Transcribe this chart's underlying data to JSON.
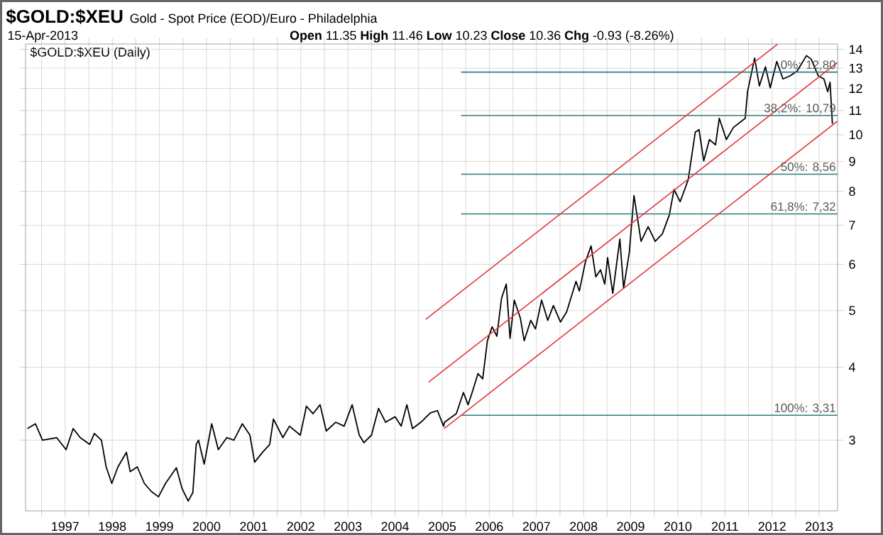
{
  "chart_data": {
    "type": "line",
    "title": "$GOLD:$XEU",
    "subtitle": "Gold - Spot Price (EOD)/Euro - Philadelphia",
    "annotations": [
      "15-Apr-2013",
      "**Open** 11.35  **High** 11.46  **Low** 10.23  **Close** 10.36  **Chg** -0.93 (-8.26%)",
      "$GOLD:$XEU (Daily)"
    ],
    "xlim": [
      1996.16,
      2013.39
    ],
    "ylim": [
      2.27,
      14.3
    ],
    "log": "y",
    "grid": true,
    "xticks": [
      {
        "value": 1996.5,
        "label": null
      },
      1997,
      {
        "value": 1997.5,
        "label": null
      },
      1998,
      {
        "value": 1998.5,
        "label": null
      },
      1999,
      {
        "value": 1999.5,
        "label": null
      },
      2000,
      {
        "value": 2000.5,
        "label": null
      },
      2001,
      {
        "value": 2001.5,
        "label": null
      },
      2002,
      {
        "value": 2002.5,
        "label": null
      },
      2003,
      {
        "value": 2003.5,
        "label": null
      },
      2004,
      {
        "value": 2004.5,
        "label": null
      },
      2005,
      {
        "value": 2005.5,
        "label": null
      },
      2006,
      {
        "value": 2006.5,
        "label": null
      },
      2007,
      {
        "value": 2007.5,
        "label": null
      },
      2008,
      {
        "value": 2008.5,
        "label": null
      },
      2009,
      {
        "value": 2009.5,
        "label": null
      },
      2010,
      {
        "value": 2010.5,
        "label": null
      },
      2011,
      {
        "value": 2011.5,
        "label": null
      },
      2012,
      {
        "value": 2012.5,
        "label": null
      },
      2013
    ],
    "yticks": [
      3,
      4,
      5,
      6,
      7,
      8,
      9,
      10,
      11,
      12,
      13,
      14
    ],
    "series": [
      {
        "color": "#000000",
        "x": [
          1996.2,
          1996.37,
          1996.52,
          1996.82,
          1997.02,
          1997.17,
          1997.32,
          1997.52,
          1997.62,
          1997.77,
          1997.87,
          1997.99,
          1998.12,
          1998.3,
          1998.38,
          1998.53,
          1998.68,
          1998.83,
          1998.98,
          1999.13,
          1999.36,
          1999.48,
          1999.61,
          1999.71,
          1999.78,
          1999.83,
          1999.95,
          2000.11,
          2000.25,
          2000.43,
          2000.58,
          2000.76,
          2000.92,
          2001.02,
          2001.19,
          2001.34,
          2001.42,
          2001.62,
          2001.76,
          2001.99,
          2002.12,
          2002.26,
          2002.41,
          2002.54,
          2002.74,
          2002.92,
          2003.09,
          2003.24,
          2003.34,
          2003.5,
          2003.65,
          2003.8,
          2004.0,
          2004.13,
          2004.25,
          2004.37,
          2004.55,
          2004.75,
          2004.9,
          2005.03,
          2005.05,
          2005.3,
          2005.45,
          2005.55,
          2005.65,
          2005.76,
          2005.86,
          2005.96,
          2006.06,
          2006.16,
          2006.26,
          2006.36,
          2006.44,
          2006.53,
          2006.66,
          2006.74,
          2006.88,
          2006.98,
          2007.11,
          2007.24,
          2007.36,
          2007.51,
          2007.64,
          2007.84,
          2007.91,
          2008.04,
          2008.16,
          2008.26,
          2008.36,
          2008.45,
          2008.51,
          2008.62,
          2008.77,
          2008.85,
          2008.97,
          2009.07,
          2009.22,
          2009.37,
          2009.52,
          2009.67,
          2009.82,
          2009.92,
          2010.05,
          2010.22,
          2010.37,
          2010.45,
          2010.55,
          2010.67,
          2010.8,
          2010.88,
          2011.03,
          2011.18,
          2011.43,
          2011.48,
          2011.63,
          2011.73,
          2011.86,
          2011.96,
          2012.1,
          2012.23,
          2012.38,
          2012.53,
          2012.73,
          2012.83,
          2012.98,
          2013.1,
          2013.18,
          2013.23,
          2013.28
        ],
        "values": [
          3.14,
          3.2,
          3.0,
          3.03,
          2.89,
          3.14,
          3.03,
          2.95,
          3.08,
          3.0,
          2.7,
          2.53,
          2.7,
          2.86,
          2.65,
          2.7,
          2.53,
          2.45,
          2.4,
          2.53,
          2.69,
          2.48,
          2.36,
          2.44,
          2.95,
          3.0,
          2.73,
          3.2,
          2.89,
          3.03,
          3.0,
          3.2,
          3.06,
          2.75,
          2.86,
          2.95,
          3.26,
          3.03,
          3.17,
          3.06,
          3.43,
          3.33,
          3.45,
          3.11,
          3.22,
          3.17,
          3.45,
          3.06,
          2.97,
          3.06,
          3.4,
          3.22,
          3.29,
          3.17,
          3.45,
          3.14,
          3.22,
          3.34,
          3.37,
          3.17,
          3.22,
          3.33,
          3.62,
          3.45,
          3.65,
          3.9,
          3.82,
          4.44,
          4.69,
          4.52,
          5.25,
          5.55,
          4.48,
          5.21,
          4.85,
          4.44,
          4.81,
          4.65,
          5.21,
          4.81,
          5.1,
          4.78,
          4.97,
          5.61,
          5.4,
          6.06,
          6.45,
          5.71,
          5.87,
          5.55,
          6.16,
          5.35,
          6.63,
          5.46,
          6.28,
          7.87,
          6.57,
          6.96,
          6.57,
          6.76,
          7.29,
          8.06,
          7.68,
          8.37,
          10.1,
          10.2,
          9.02,
          9.81,
          9.61,
          10.67,
          9.81,
          10.29,
          10.67,
          11.85,
          13.53,
          12.12,
          13.07,
          12.03,
          13.35,
          12.46,
          12.61,
          12.85,
          13.66,
          13.47,
          12.61,
          12.46,
          11.85,
          12.3,
          10.44
        ]
      },
      {
        "name": "0%: 12,80",
        "color": "#2e7b7b",
        "x": [
          2005.4,
          2013.39
        ],
        "values": [
          12.8,
          12.8
        ]
      },
      {
        "name": "38,2%: 10,79",
        "color": "#2e7b7b",
        "x": [
          2005.4,
          2013.39
        ],
        "values": [
          10.79,
          10.79
        ]
      },
      {
        "name": "50%: 8,56",
        "color": "#2e7b7b",
        "x": [
          2005.4,
          2013.39
        ],
        "values": [
          8.56,
          8.56
        ]
      },
      {
        "name": "61,8%: 7,32",
        "color": "#2e7b7b",
        "x": [
          2005.4,
          2013.39
        ],
        "values": [
          7.32,
          7.32
        ]
      },
      {
        "name": "100%: 3,31",
        "color": "#2e7b7b",
        "x": [
          2005.4,
          2013.39
        ],
        "values": [
          3.31,
          3.31
        ]
      },
      {
        "color": "#e0393e",
        "x": [
          2005.04,
          2013.39
        ],
        "values": [
          3.14,
          10.55
        ]
      },
      {
        "color": "#e0393e",
        "x": [
          2004.71,
          2013.39
        ],
        "values": [
          3.77,
          13.3
        ]
      },
      {
        "color": "#e0393e",
        "x": [
          2004.65,
          2012.12
        ],
        "values": [
          4.83,
          14.3
        ]
      }
    ]
  }
}
